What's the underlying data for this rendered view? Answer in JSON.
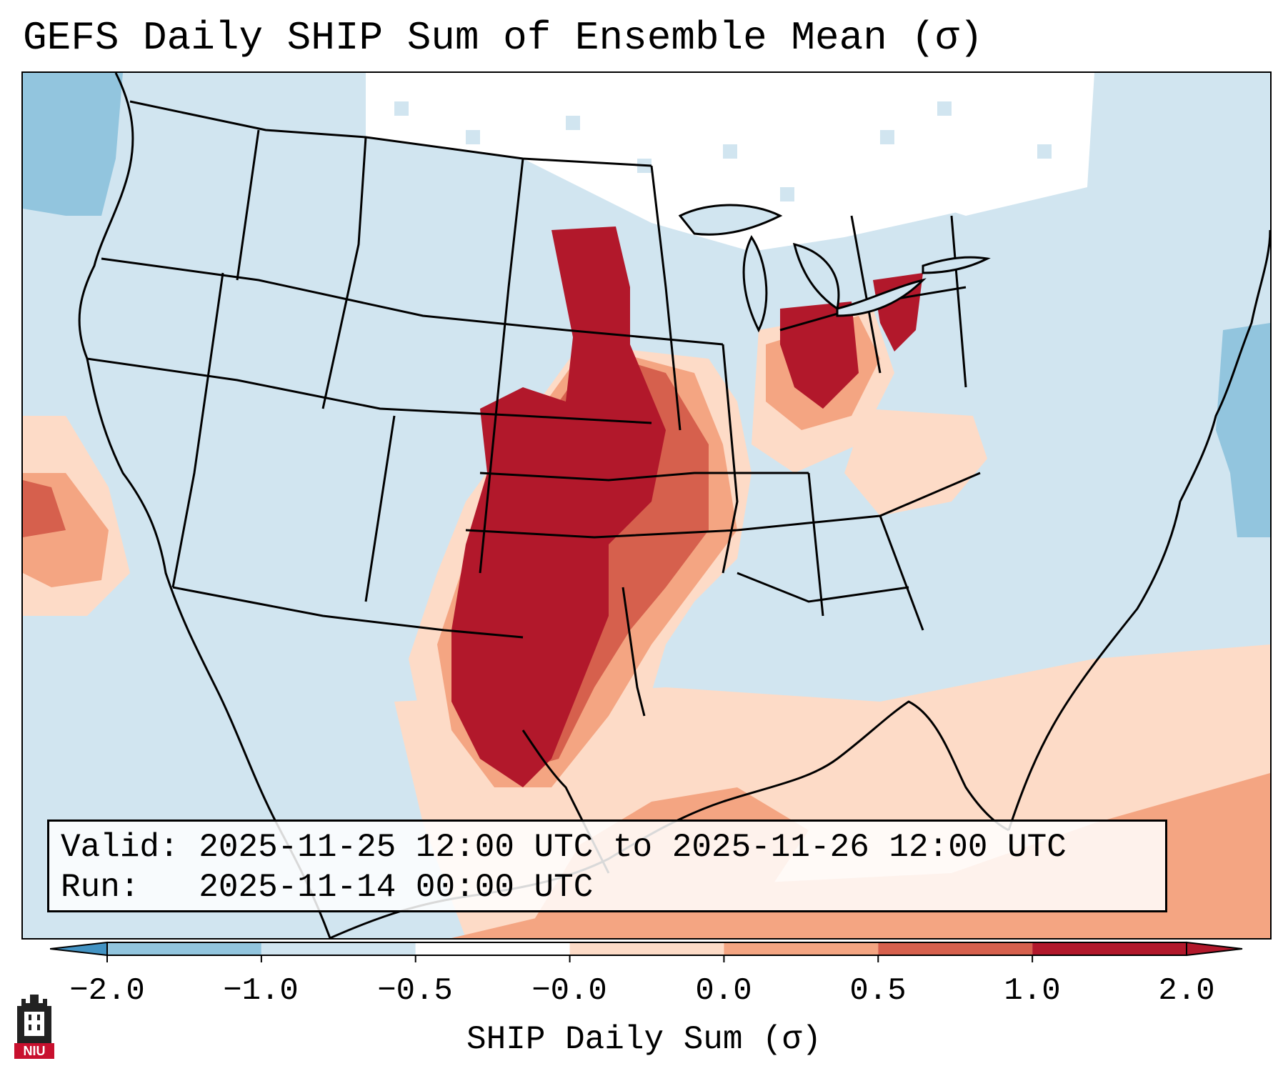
{
  "title": "GEFS Daily SHIP Sum of Ensemble Mean (σ)",
  "info": {
    "valid_label": "Valid:",
    "valid_value": "2025-11-25 12:00 UTC to 2025-11-26 12:00 UTC",
    "run_label": "Run:",
    "run_value": "2025-11-14 00:00 UTC"
  },
  "colorbar": {
    "label": "SHIP Daily Sum (σ)",
    "ticks": [
      "−2.0",
      "−1.0",
      "−0.5",
      "−0.0",
      "0.0",
      "0.5",
      "1.0",
      "2.0"
    ],
    "colors": [
      "#4393c3",
      "#92c5de",
      "#d1e5f0",
      "#ffffff",
      "#fddbc7",
      "#f4a582",
      "#d6604d",
      "#b2182b"
    ],
    "extend": "both"
  },
  "map": {
    "region": "Contiguous United States",
    "ocean_color": "#d1e5f0",
    "outline_color": "#000000"
  },
  "logo": {
    "text": "NIU"
  }
}
